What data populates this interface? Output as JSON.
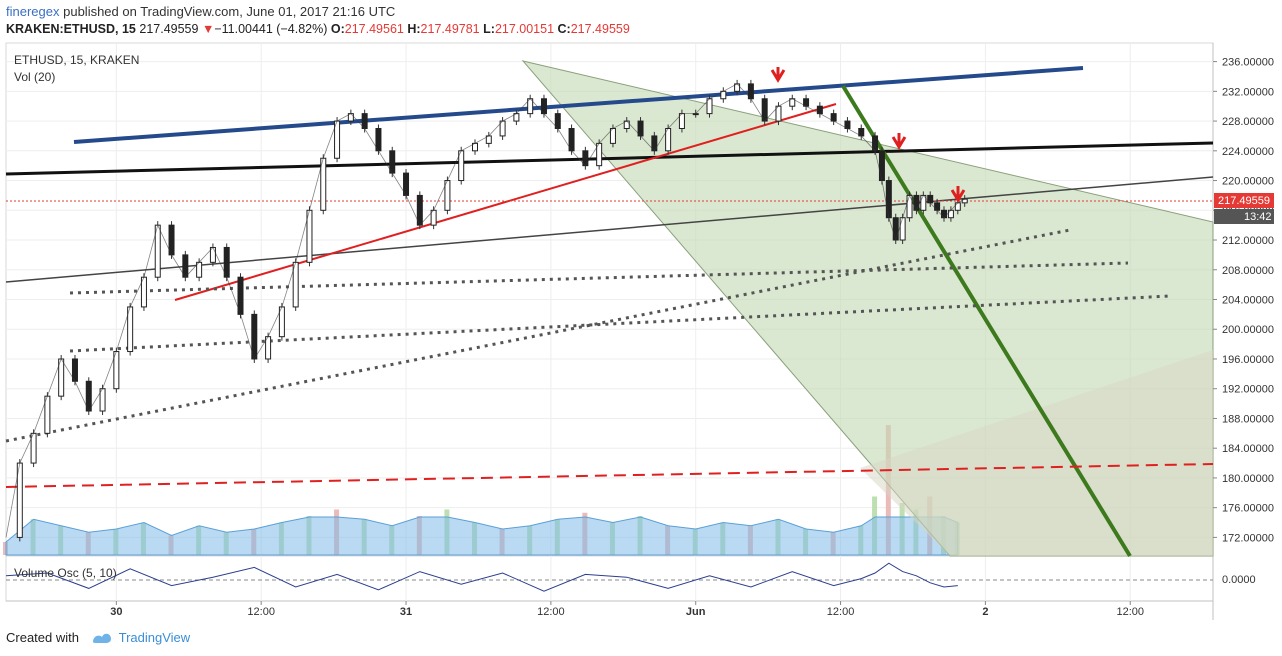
{
  "header": {
    "author": "fineregex",
    "published_text": "published on TradingView.com, June 01, 2017 21:16 UTC",
    "symbol": "KRAKEN:ETHUSD, 15",
    "last": "217.49559",
    "change_arrow": "▼",
    "change": "−11.00441 (−4.82%)",
    "open_label": "O:",
    "open": "217.49561",
    "high_label": "H:",
    "high": "217.49781",
    "low_label": "L:",
    "low": "217.00151",
    "close_label": "C:",
    "close": "217.49559"
  },
  "legend": {
    "title": "ETHUSD, 15, KRAKEN",
    "volume": "Vol (20)",
    "oscillator": "Volume Osc (5, 10)"
  },
  "price_badge": {
    "value": "217.49559",
    "timer": "13:42",
    "color": "#e53935"
  },
  "osc_axis_label": "0.0000",
  "footer": {
    "created_with": "Created with",
    "brand": "TradingView"
  },
  "chart_data": {
    "type": "line",
    "title": "",
    "xlabel": "",
    "ylabel": "",
    "yticks": [
      172,
      176,
      180,
      184,
      188,
      192,
      196,
      200,
      204,
      208,
      212,
      216,
      220,
      224,
      228,
      232,
      236
    ],
    "ytick_labels": [
      "172.00000",
      "176.00000",
      "180.00000",
      "184.00000",
      "188.00000",
      "192.00000",
      "196.00000",
      "200.00000",
      "204.00000",
      "208.00000",
      "212.00000",
      "216.00000",
      "220.00000",
      "224.00000",
      "228.00000",
      "232.00000",
      "236.00000"
    ],
    "ylim": [
      169.5,
      238.5
    ],
    "xlim": [
      0,
      175
    ],
    "xticks": [
      16,
      37,
      58,
      79,
      100,
      121,
      142,
      163
    ],
    "xtick_labels": [
      "30",
      "12:00",
      "31",
      "12:00",
      "Jun",
      "12:00",
      "2",
      "12:00"
    ],
    "series": [
      {
        "x": [
          0,
          2,
          4,
          6,
          8,
          10,
          12,
          14,
          16,
          18,
          20,
          22,
          24,
          26,
          28,
          30,
          32,
          34,
          36,
          38,
          40,
          42,
          44,
          46,
          48,
          50,
          52,
          54,
          56,
          58,
          60,
          62,
          64,
          66,
          68,
          70,
          72,
          74,
          76,
          78,
          80,
          82,
          84,
          86,
          88,
          90,
          92,
          94,
          96,
          98,
          100,
          102,
          104,
          106,
          108,
          110,
          112,
          114,
          116,
          118,
          120,
          122,
          124,
          126,
          127,
          128,
          129,
          130,
          131,
          132,
          133,
          134,
          135,
          136,
          137,
          138,
          139
        ],
        "values": [
          172,
          182,
          186,
          191,
          196,
          193,
          189,
          192,
          197,
          203,
          207,
          214,
          210,
          207,
          209,
          211,
          207,
          202,
          196,
          199,
          203,
          209,
          216,
          223,
          228,
          229,
          227,
          224,
          221,
          218,
          214,
          216,
          220,
          224,
          225,
          226,
          228,
          229,
          231,
          229,
          227,
          224,
          222,
          225,
          227,
          228,
          226,
          224,
          227,
          229,
          229,
          231,
          232,
          233,
          231,
          228,
          230,
          231,
          230,
          229,
          228,
          227,
          226,
          224,
          220,
          215,
          212,
          215,
          218,
          216,
          218,
          217,
          216,
          215,
          216,
          217,
          217.5
        ]
      }
    ],
    "volume": {
      "x": [
        0,
        4,
        8,
        12,
        16,
        20,
        24,
        28,
        32,
        36,
        40,
        44,
        48,
        52,
        56,
        60,
        64,
        68,
        72,
        76,
        80,
        84,
        88,
        92,
        96,
        100,
        104,
        108,
        112,
        116,
        120,
        124,
        126,
        128,
        130,
        132,
        134,
        136,
        138
      ],
      "values": [
        4,
        11,
        9,
        7,
        8,
        10,
        6,
        9,
        7,
        8,
        10,
        12,
        14,
        11,
        9,
        12,
        14,
        10,
        8,
        9,
        11,
        13,
        10,
        12,
        9,
        8,
        10,
        9,
        11,
        8,
        7,
        9,
        18,
        40,
        16,
        14,
        18,
        12,
        10
      ]
    },
    "oscillator": {
      "x": [
        0,
        6,
        12,
        18,
        24,
        30,
        36,
        42,
        48,
        54,
        60,
        66,
        72,
        78,
        84,
        90,
        96,
        102,
        108,
        114,
        120,
        124,
        126,
        128,
        130,
        132,
        134,
        136,
        138
      ],
      "values": [
        0.3,
        0.5,
        -0.6,
        0.8,
        -0.4,
        0.2,
        0.9,
        -0.5,
        0.4,
        -0.7,
        0.6,
        -0.3,
        0.5,
        -0.8,
        0.4,
        0.2,
        -0.6,
        0.3,
        -0.5,
        0.6,
        -0.4,
        0.1,
        0.5,
        1.2,
        0.6,
        0.3,
        -0.2,
        -0.5,
        -0.4
      ]
    }
  }
}
